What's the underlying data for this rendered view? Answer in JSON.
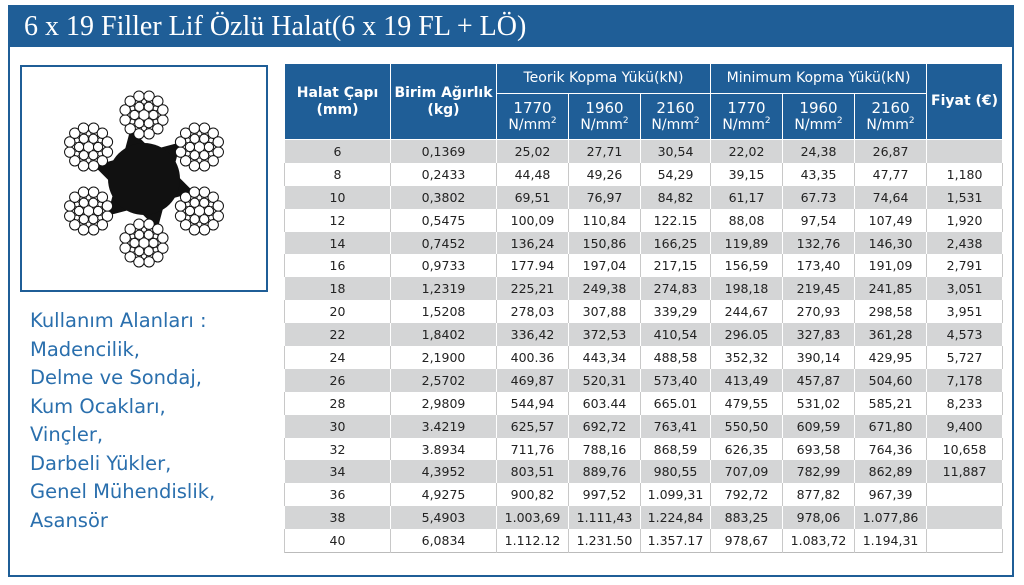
{
  "title": "6 x 19 Filler Lif Özlü Halat(6 x 19 FL + LÖ)",
  "colors": {
    "brand": "#1f5e97",
    "usage_text": "#2a6fad",
    "row_shade": "#d4d5d6"
  },
  "image": {
    "icon": "wire-rope-cross-section"
  },
  "usage": {
    "heading": "Kullanım Alanları :",
    "items": [
      "Madencilik,",
      "Delme ve Sondaj,",
      "Kum Ocakları,",
      "Vinçler,",
      "Darbeli Yükler,",
      "Genel Mühendislik,",
      "Asansör"
    ]
  },
  "table": {
    "col_diameter": "Halat Çapı (mm)",
    "col_weight": "Birim Ağırlık (kg)",
    "group_theoretical": "Teorik Kopma Yükü(kN)",
    "group_minimum": "Minimum Kopma Yükü(kN)",
    "col_price": "Fiyat (€)",
    "unit_label": "N/mm",
    "unit_power": "2",
    "grades": [
      "1770",
      "1960",
      "2160",
      "1770",
      "1960",
      "2160"
    ],
    "rows": [
      [
        "6",
        "0,1369",
        "25,02",
        "27,71",
        "30,54",
        "22,02",
        "24,38",
        "26,87",
        ""
      ],
      [
        "8",
        "0,2433",
        "44,48",
        "49,26",
        "54,29",
        "39,15",
        "43,35",
        "47,77",
        "1,180"
      ],
      [
        "10",
        "0,3802",
        "69,51",
        "76,97",
        "84,82",
        "61,17",
        "67.73",
        "74,64",
        "1,531"
      ],
      [
        "12",
        "0,5475",
        "100,09",
        "110,84",
        "122.15",
        "88,08",
        "97,54",
        "107,49",
        "1,920"
      ],
      [
        "14",
        "0,7452",
        "136,24",
        "150,86",
        "166,25",
        "119,89",
        "132,76",
        "146,30",
        "2,438"
      ],
      [
        "16",
        "0,9733",
        "177.94",
        "197,04",
        "217,15",
        "156,59",
        "173,40",
        "191,09",
        "2,791"
      ],
      [
        "18",
        "1,2319",
        "225,21",
        "249,38",
        "274,83",
        "198,18",
        "219,45",
        "241,85",
        "3,051"
      ],
      [
        "20",
        "1,5208",
        "278,03",
        "307,88",
        "339,29",
        "244,67",
        "270,93",
        "298,58",
        "3,951"
      ],
      [
        "22",
        "1,8402",
        "336,42",
        "372,53",
        "410,54",
        "296.05",
        "327,83",
        "361,28",
        "4,573"
      ],
      [
        "24",
        "2,1900",
        "400.36",
        "443,34",
        "488,58",
        "352,32",
        "390,14",
        "429,95",
        "5,727"
      ],
      [
        "26",
        "2,5702",
        "469,87",
        "520,31",
        "573,40",
        "413,49",
        "457,87",
        "504,60",
        "7,178"
      ],
      [
        "28",
        "2,9809",
        "544,94",
        "603.44",
        "665.01",
        "479,55",
        "531,02",
        "585,21",
        "8,233"
      ],
      [
        "30",
        "3.4219",
        "625,57",
        "692,72",
        "763,41",
        "550,50",
        "609,59",
        "671,80",
        "9,400"
      ],
      [
        "32",
        "3.8934",
        "711,76",
        "788,16",
        "868,59",
        "626,35",
        "693,58",
        "764,36",
        "10,658"
      ],
      [
        "34",
        "4,3952",
        "803,51",
        "889,76",
        "980,55",
        "707,09",
        "782,99",
        "862,89",
        "11,887"
      ],
      [
        "36",
        "4,9275",
        "900,82",
        "997,52",
        "1.099,31",
        "792,72",
        "877,82",
        "967,39",
        ""
      ],
      [
        "38",
        "5,4903",
        "1.003,69",
        "1.111,43",
        "1.224,84",
        "883,25",
        "978,06",
        "1.077,86",
        ""
      ],
      [
        "40",
        "6,0834",
        "1.112.12",
        "1.231.50",
        "1.357.17",
        "978,67",
        "1.083,72",
        "1.194,31",
        ""
      ]
    ]
  }
}
